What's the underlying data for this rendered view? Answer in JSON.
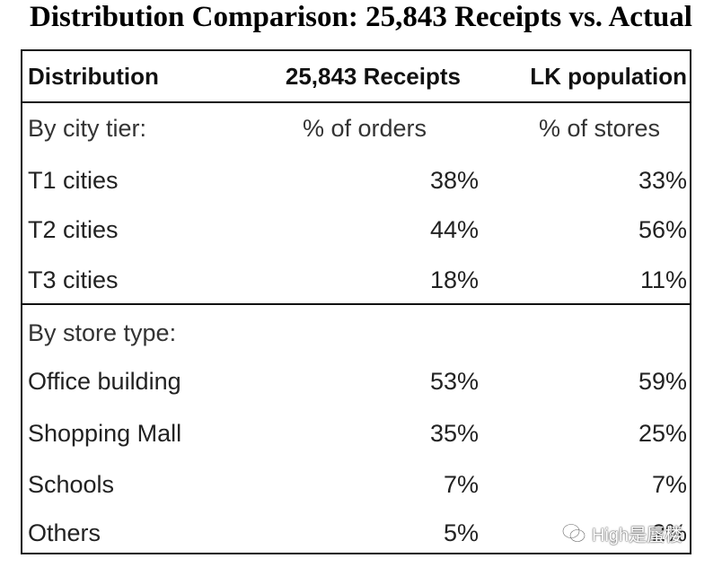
{
  "title": "Distribution Comparison: 25,843 Receipts vs. Actual",
  "table": {
    "headers": [
      "Distribution",
      "25,843 Receipts",
      "LK population"
    ],
    "sections": [
      {
        "label": "By city tier:",
        "col1_unit": "% of orders",
        "col2_unit": "% of stores",
        "rows": [
          {
            "name": "T1 cities",
            "receipts": "38%",
            "population": "33%"
          },
          {
            "name": "T2 cities",
            "receipts": "44%",
            "population": "56%"
          },
          {
            "name": "T3 cities",
            "receipts": "18%",
            "population": "11%"
          }
        ]
      },
      {
        "label": "By store type:",
        "rows": [
          {
            "name": "Office building",
            "receipts": "53%",
            "population": "59%"
          },
          {
            "name": "Shopping Mall",
            "receipts": "35%",
            "population": "25%"
          },
          {
            "name": "Schools",
            "receipts": "7%",
            "population": "7%"
          },
          {
            "name": "Others",
            "receipts": "5%",
            "population": "2%"
          }
        ]
      }
    ]
  },
  "watermark": {
    "text": "High是蜃楼",
    "icon": "wechat-icon"
  }
}
